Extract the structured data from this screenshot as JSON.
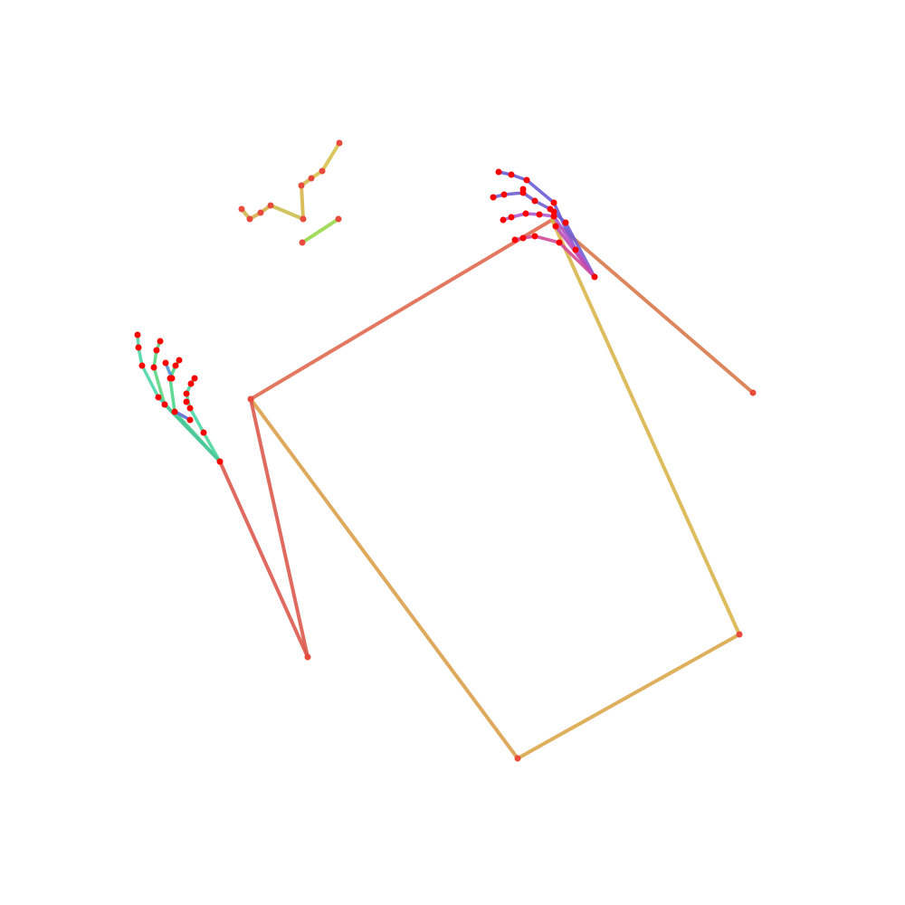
{
  "colors": {
    "background": "#ffffff",
    "joint": "#ff0000",
    "body_joint": "#e84a3c"
  },
  "pose": {
    "type": "keypoint-skeleton",
    "groups": [
      "body",
      "face",
      "right-hand",
      "left-hand"
    ]
  }
}
